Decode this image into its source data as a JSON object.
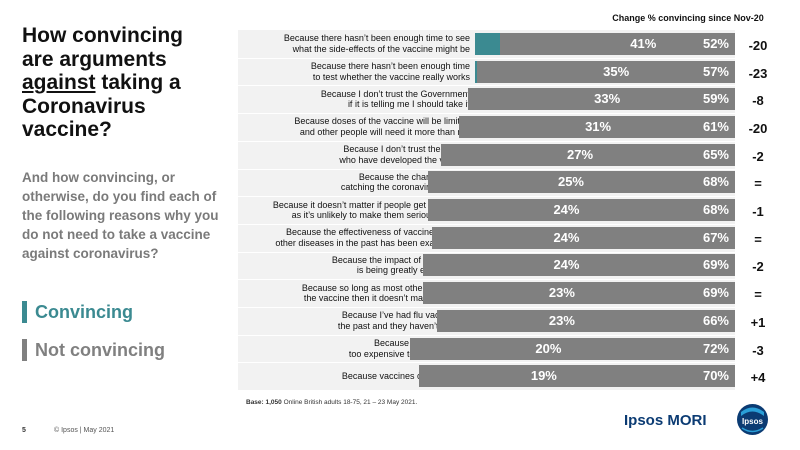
{
  "title": {
    "line1": "How convincing",
    "line2": "are arguments",
    "emphasis": "against",
    "line3_rest": " taking a",
    "line4": "Coronavirus",
    "line5": "vaccine?"
  },
  "subtitle": "And how convincing, or otherwise, do you find each of the following reasons why you do not need to take a vaccine against coronavirus?",
  "legend": {
    "convincing": "Convincing",
    "not_convincing": "Not convincing"
  },
  "change_header": "Change % convincing since Nov-20",
  "base": {
    "label": "Base: 1,050",
    "text": " Online British adults 18-75,  21 – 23 May 2021."
  },
  "footer": {
    "page": "5",
    "copyright": "© Ipsos | May 2021"
  },
  "brand": {
    "name": "Ipsos MORI",
    "logo_text": "Ipsos"
  },
  "colors": {
    "convincing": "#3b8a91",
    "not_convincing": "#808080",
    "gap": "#d6d6d6",
    "brand": "#0b3b73"
  },
  "chart_data": {
    "type": "bar",
    "orientation": "horizontal-stacked",
    "xlim": [
      0,
      100
    ],
    "categories": [
      "Because there hasn’t been enough time to see\nwhat the side-effects of the vaccine might be",
      "Because there hasn’t been enough time\nto test whether the vaccine really works",
      "Because I don’t trust the Government\nif it is telling me I should take it",
      "Because doses of the vaccine will be limited\nand other people will need it more than me",
      "Because I don’t trust the people\nwho have developed the vaccine",
      "Because the chances of me\ncatching the coronavirus are low",
      "Because it doesn’t matter if people get COVID-19\nas it’s unlikely to make them seriously unwell",
      "Because the effectiveness of vaccines against\nother diseases in the past has been exaggerated",
      "Because the impact of coronavirus\nis being greatly exaggerated",
      "Because so long as most other people get\nthe vaccine then it doesn’t matter if I don’t",
      "Because I’ve had flu vaccines in\nthe past and they haven’t worked",
      "Because it is likely to be\ntoo expensive to get a vaccine",
      "Because vaccines cause autism"
    ],
    "series": [
      {
        "name": "Convincing",
        "values": [
          41,
          35,
          33,
          31,
          27,
          25,
          24,
          24,
          24,
          23,
          23,
          20,
          19
        ]
      },
      {
        "name": "Not convincing",
        "values": [
          52,
          57,
          59,
          61,
          65,
          68,
          68,
          67,
          69,
          69,
          66,
          72,
          70
        ]
      }
    ],
    "change_since_nov20": [
      "-20",
      "-23",
      "-8",
      "-20",
      "-2",
      "=",
      "-1",
      "=",
      "-2",
      "=",
      "+1",
      "-3",
      "+4"
    ]
  }
}
